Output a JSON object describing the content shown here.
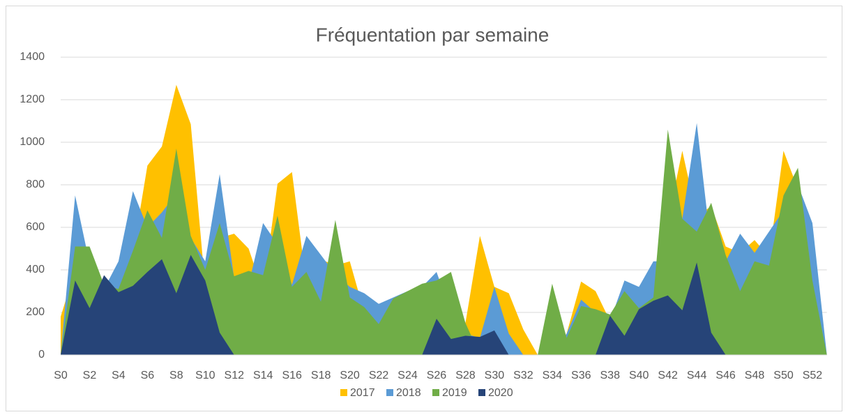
{
  "chart_data": {
    "type": "area",
    "title": "Fréquentation par semaine",
    "categories": [
      "S0",
      null,
      "S2",
      null,
      "S4",
      null,
      "S6",
      null,
      "S8",
      null,
      "S10",
      null,
      "S12",
      null,
      "S14",
      null,
      "S16",
      null,
      "S18",
      null,
      "S20",
      null,
      "S22",
      null,
      "S24",
      null,
      "S26",
      null,
      "S28",
      null,
      "S30",
      null,
      "S32",
      null,
      "S34",
      null,
      "S36",
      null,
      "S38",
      null,
      "S40",
      null,
      "S42",
      null,
      "S44",
      null,
      "S46",
      null,
      "S48",
      null,
      "S50",
      null,
      "S52",
      null
    ],
    "series": [
      {
        "name": "2017",
        "color": "#ffc000",
        "values": [
          180,
          400,
          300,
          280,
          320,
          480,
          890,
          980,
          1270,
          1085,
          320,
          550,
          570,
          500,
          300,
          805,
          860,
          330,
          450,
          420,
          440,
          200,
          150,
          250,
          300,
          330,
          300,
          350,
          150,
          560,
          320,
          290,
          120,
          0,
          0,
          100,
          345,
          300,
          160,
          250,
          200,
          340,
          630,
          960,
          650,
          700,
          510,
          480,
          540,
          460,
          960,
          780,
          360,
          0
        ]
      },
      {
        "name": "2018",
        "color": "#5b9bd5",
        "values": [
          0,
          750,
          430,
          310,
          440,
          770,
          600,
          670,
          760,
          550,
          440,
          850,
          360,
          330,
          620,
          520,
          330,
          560,
          470,
          380,
          320,
          290,
          240,
          270,
          300,
          320,
          390,
          200,
          100,
          80,
          320,
          100,
          0,
          0,
          0,
          100,
          260,
          200,
          160,
          350,
          320,
          440,
          440,
          640,
          1090,
          500,
          440,
          570,
          480,
          580,
          680,
          800,
          620,
          0
        ]
      },
      {
        "name": "2019",
        "color": "#70ad47",
        "values": [
          0,
          510,
          510,
          330,
          310,
          490,
          680,
          550,
          970,
          560,
          400,
          620,
          370,
          395,
          375,
          655,
          320,
          390,
          250,
          635,
          270,
          225,
          145,
          265,
          300,
          335,
          350,
          390,
          150,
          0,
          0,
          0,
          0,
          0,
          335,
          80,
          230,
          215,
          190,
          300,
          220,
          270,
          1060,
          640,
          580,
          715,
          470,
          300,
          440,
          420,
          750,
          880,
          350,
          0
        ]
      },
      {
        "name": "2020",
        "color": "#264478",
        "values": [
          0,
          350,
          220,
          375,
          295,
          325,
          390,
          450,
          290,
          470,
          350,
          105,
          0,
          0,
          0,
          0,
          0,
          0,
          0,
          0,
          0,
          0,
          0,
          0,
          0,
          0,
          170,
          75,
          90,
          85,
          115,
          0,
          0,
          0,
          0,
          0,
          0,
          0,
          185,
          90,
          215,
          255,
          280,
          210,
          435,
          105,
          0,
          0,
          0,
          0,
          0,
          0,
          0,
          0
        ]
      }
    ],
    "ylim": [
      0,
      1400
    ],
    "yticks": [
      0,
      200,
      400,
      600,
      800,
      1000,
      1200,
      1400
    ],
    "grid": true,
    "legend": "bottom"
  }
}
